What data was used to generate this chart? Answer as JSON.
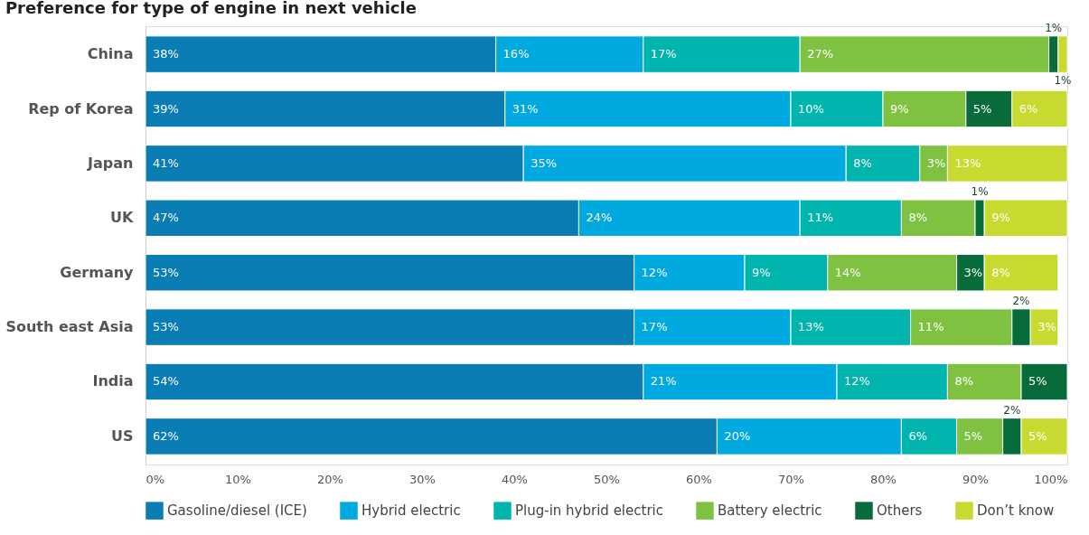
{
  "chart_data": {
    "type": "bar",
    "orientation": "horizontal",
    "stacked": true,
    "title": "Preference for type of engine in next vehicle",
    "categories": [
      "China",
      "Rep of Korea",
      "Japan",
      "UK",
      "Germany",
      "South east Asia",
      "India",
      "US"
    ],
    "series": [
      {
        "name": "Gasoline/diesel (ICE)",
        "color": "#0a7db5",
        "values": [
          38,
          39,
          41,
          47,
          53,
          53,
          54,
          62
        ],
        "value_labels": [
          "38%",
          "39%",
          "41%",
          "47%",
          "53%",
          "53%",
          "54%",
          "62%"
        ]
      },
      {
        "name": "Hybrid electric",
        "color": "#00a9e0",
        "values": [
          16,
          31,
          35,
          24,
          12,
          17,
          21,
          20
        ],
        "value_labels": [
          "16%",
          "31%",
          "35%",
          "24%",
          "12%",
          "17%",
          "21%",
          "20%"
        ]
      },
      {
        "name": "Plug-in hybrid electric",
        "color": "#00b5ad",
        "values": [
          17,
          10,
          8,
          11,
          9,
          13,
          12,
          6
        ],
        "value_labels": [
          "17%",
          "10%",
          "8%",
          "11%",
          "9%",
          "13%",
          "12%",
          "6%"
        ]
      },
      {
        "name": "Battery electric",
        "color": "#7fc241",
        "values": [
          27,
          9,
          3,
          8,
          14,
          11,
          8,
          5
        ],
        "value_labels": [
          "27%",
          "9%",
          "3%",
          "8%",
          "14%",
          "11%",
          "8%",
          "5%"
        ]
      },
      {
        "name": "Others",
        "color": "#076b3a",
        "values": [
          1,
          5,
          null,
          1,
          3,
          2,
          5,
          2
        ],
        "value_labels": [
          "1%",
          "5%",
          null,
          "1%",
          "3%",
          "2%",
          "5%",
          "2%"
        ]
      },
      {
        "name": "Don’t know",
        "color": "#c8d930",
        "values": [
          1,
          6,
          13,
          9,
          8,
          3,
          null,
          5
        ],
        "value_labels": [
          "1%",
          "6%",
          "13%",
          "9%",
          "8%",
          "3%",
          null,
          "5%"
        ]
      }
    ],
    "xlim": [
      0,
      100
    ],
    "xticks": [
      {
        "value": 0,
        "label": "0%"
      },
      {
        "value": 10,
        "label": "10%"
      },
      {
        "value": 20,
        "label": "20%"
      },
      {
        "value": 30,
        "label": "30%"
      },
      {
        "value": 40,
        "label": "40%"
      },
      {
        "value": 50,
        "label": "50%"
      },
      {
        "value": 60,
        "label": "60%"
      },
      {
        "value": 70,
        "label": "70%"
      },
      {
        "value": 80,
        "label": "80%"
      },
      {
        "value": 90,
        "label": "90%"
      },
      {
        "value": 100,
        "label": "100%"
      }
    ],
    "grid": false,
    "legend": "bottom"
  }
}
